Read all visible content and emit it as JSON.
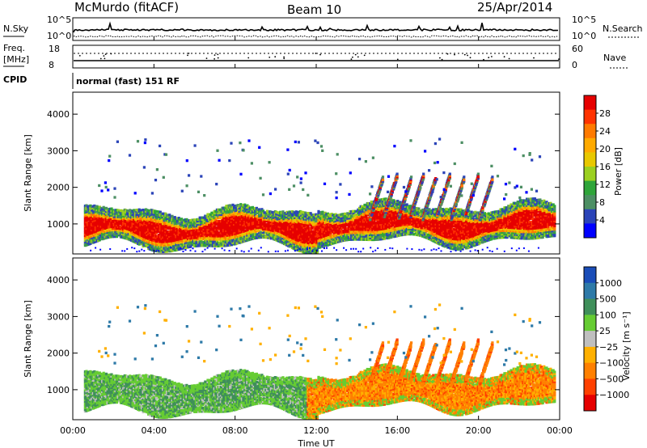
{
  "header": {
    "station": "McMurdo (fitACF)",
    "beam": "Beam 10",
    "date": "25/Apr/2014"
  },
  "top_panels": {
    "nsky_label": "N.Sky",
    "nsky_ticks": [
      "10^5",
      "10^0"
    ],
    "nsearch_label": "N.Search",
    "nsearch_ticks": [
      "10^5",
      "10^0"
    ],
    "freq_label": "Freq.",
    "freq_unit": "[MHz]",
    "freq_ticks": [
      "18",
      "8"
    ],
    "nave_label": "Nave",
    "nave_ticks": [
      "60",
      "0"
    ],
    "cpid_label": "CPID",
    "cpid_text": "normal (fast) 151 RF"
  },
  "chart_data": [
    {
      "type": "heatmap",
      "name": "power-panel",
      "xlabel": "Time UT",
      "ylabel": "Slant Range [km]",
      "xlim": [
        0,
        24
      ],
      "ylim": [
        180,
        4600
      ],
      "y_ticks": [
        "4000",
        "3000",
        "2000",
        "1000"
      ],
      "colorbar": {
        "label": "Power [dB]",
        "ticks": [
          "28",
          "24",
          "20",
          "16",
          "12",
          "8",
          "4"
        ],
        "colors": [
          "#e60000",
          "#ff3300",
          "#ff7a00",
          "#ffaa00",
          "#e8c800",
          "#9bd020",
          "#2fa53a",
          "#4d8f64",
          "#2b44b8",
          "#0000ff"
        ]
      },
      "bands": [
        {
          "name": "main-echo-band",
          "x": [
            0.5,
            23.7
          ],
          "range_km": [
            600,
            1400
          ],
          "dominant": "red"
        },
        {
          "name": "scatter-16-20UT",
          "x": [
            15.5,
            20.5
          ],
          "range_km": [
            1100,
            2300
          ],
          "dominant": "red/orange"
        }
      ]
    },
    {
      "type": "heatmap",
      "name": "velocity-panel",
      "xlabel": "Time UT",
      "ylabel": "Slant Range [km]",
      "xlim": [
        0,
        24
      ],
      "ylim": [
        180,
        4600
      ],
      "y_ticks": [
        "4000",
        "3000",
        "2000",
        "1000"
      ],
      "x_ticks": [
        "00:00",
        "04:00",
        "08:00",
        "12:00",
        "16:00",
        "20:00",
        "00:00"
      ],
      "colorbar": {
        "label": "Velocity [m s⁻¹]",
        "ticks": [
          "1000",
          "500",
          "100",
          "25",
          "−25",
          "−100",
          "−500",
          "−1000"
        ],
        "colors": [
          "#1a4db8",
          "#2e7aa8",
          "#3f8f5a",
          "#66cc33",
          "#bfbfbf",
          "#ffb000",
          "#ff8000",
          "#ff4000",
          "#e60000"
        ]
      },
      "bands": [
        {
          "name": "main-echo-band",
          "x": [
            0.5,
            11.5
          ],
          "range_km": [
            600,
            1400
          ],
          "dominant": "green"
        },
        {
          "name": "main-echo-band-late",
          "x": [
            11.5,
            23.7
          ],
          "range_km": [
            700,
            1600
          ],
          "dominant": "orange"
        }
      ]
    }
  ]
}
